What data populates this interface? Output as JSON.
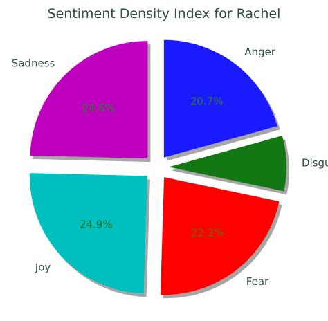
{
  "chart_data": {
    "type": "pie",
    "title": "Sentiment Density Index for Rachel",
    "slices": [
      {
        "label": "Sadness",
        "value": 24.6,
        "pct_label": "24.6%",
        "color": "#bf00bf",
        "pct_color": "#2e7d32",
        "exploded": true
      },
      {
        "label": "Joy",
        "value": 24.9,
        "pct_label": "24.9%",
        "color": "#00bfbf",
        "pct_color": "#1b6e1b",
        "exploded": true
      },
      {
        "label": "Fear",
        "value": 22.2,
        "pct_label": "22.2%",
        "color": "#ff0000",
        "pct_color": "#6b6b00",
        "exploded": true
      },
      {
        "label": "Disgust",
        "value": 7.6,
        "pct_label": "",
        "color": "#137713",
        "pct_color": "#137713",
        "exploded": true
      },
      {
        "label": "Anger",
        "value": 20.7,
        "pct_label": "20.7%",
        "color": "#1a1aff",
        "pct_color": "#2e7d32",
        "exploded": true
      }
    ],
    "start_angle_deg": 90,
    "direction": "counterclockwise",
    "shadow": true
  }
}
